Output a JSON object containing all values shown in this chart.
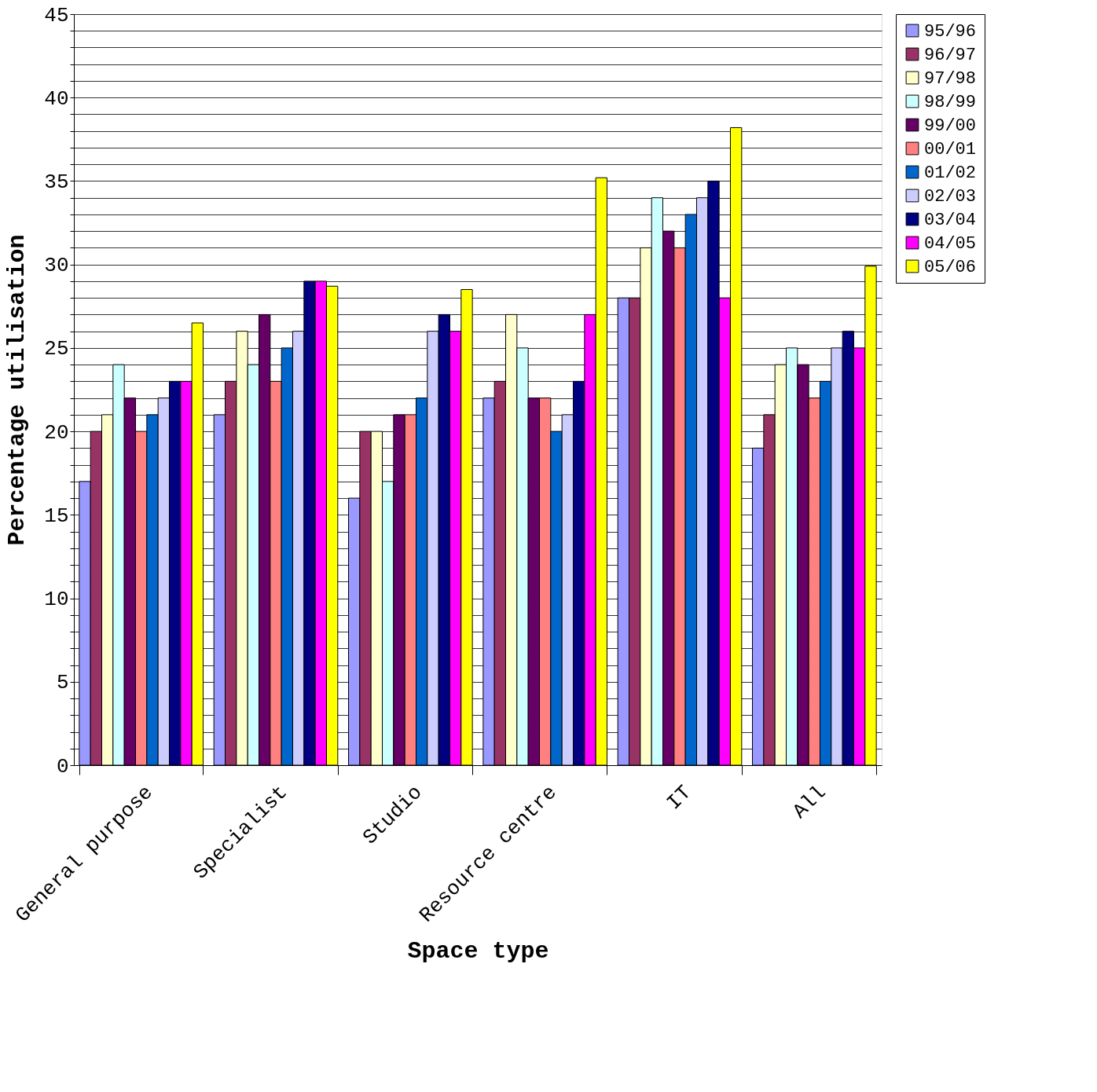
{
  "chart_data": {
    "type": "bar",
    "xlabel": "Space type",
    "ylabel": "Percentage utilisation",
    "categories": [
      "General purpose",
      "Specialist",
      "Studio",
      "Resource centre",
      "IT",
      "All"
    ],
    "series": [
      {
        "name": "95/96",
        "color": "#9999ff",
        "values": [
          17,
          21,
          16,
          22,
          28,
          19
        ]
      },
      {
        "name": "96/97",
        "color": "#993366",
        "values": [
          20,
          23,
          20,
          23,
          28,
          21
        ]
      },
      {
        "name": "97/98",
        "color": "#ffffcc",
        "values": [
          21,
          26,
          20,
          27,
          31,
          24
        ]
      },
      {
        "name": "98/99",
        "color": "#ccffff",
        "values": [
          24,
          24,
          17,
          25,
          34,
          25
        ]
      },
      {
        "name": "99/00",
        "color": "#660066",
        "values": [
          22,
          27,
          21,
          22,
          32,
          24
        ]
      },
      {
        "name": "00/01",
        "color": "#ff8080",
        "values": [
          20,
          23,
          21,
          22,
          31,
          22
        ]
      },
      {
        "name": "01/02",
        "color": "#0066cc",
        "values": [
          21,
          25,
          22,
          20,
          33,
          23
        ]
      },
      {
        "name": "02/03",
        "color": "#ccccff",
        "values": [
          22,
          26,
          26,
          21,
          34,
          25
        ]
      },
      {
        "name": "03/04",
        "color": "#000080",
        "values": [
          23,
          29,
          27,
          23,
          35,
          26
        ]
      },
      {
        "name": "04/05",
        "color": "#ff00ff",
        "values": [
          23,
          29,
          26,
          27,
          28,
          25
        ]
      },
      {
        "name": "05/06",
        "color": "#ffff00",
        "values": [
          26.5,
          28.7,
          28.5,
          35.2,
          38.2,
          29.9
        ]
      }
    ],
    "ylim": [
      0,
      45
    ],
    "yticks": [
      0,
      {
        "value": 1,
        "label": null
      },
      {
        "value": 2,
        "label": null
      },
      {
        "value": 3,
        "label": null
      },
      {
        "value": 4,
        "label": null
      },
      5,
      {
        "value": 6,
        "label": null
      },
      {
        "value": 7,
        "label": null
      },
      {
        "value": 8,
        "label": null
      },
      {
        "value": 9,
        "label": null
      },
      10,
      {
        "value": 11,
        "label": null
      },
      {
        "value": 12,
        "label": null
      },
      {
        "value": 13,
        "label": null
      },
      {
        "value": 14,
        "label": null
      },
      15,
      {
        "value": 16,
        "label": null
      },
      {
        "value": 17,
        "label": null
      },
      {
        "value": 18,
        "label": null
      },
      {
        "value": 19,
        "label": null
      },
      20,
      {
        "value": 21,
        "label": null
      },
      {
        "value": 22,
        "label": null
      },
      {
        "value": 23,
        "label": null
      },
      {
        "value": 24,
        "label": null
      },
      25,
      {
        "value": 26,
        "label": null
      },
      {
        "value": 27,
        "label": null
      },
      {
        "value": 28,
        "label": null
      },
      {
        "value": 29,
        "label": null
      },
      30,
      {
        "value": 31,
        "label": null
      },
      {
        "value": 32,
        "label": null
      },
      {
        "value": 33,
        "label": null
      },
      {
        "value": 34,
        "label": null
      },
      35,
      {
        "value": 36,
        "label": null
      },
      {
        "value": 37,
        "label": null
      },
      {
        "value": 38,
        "label": null
      },
      {
        "value": 39,
        "label": null
      },
      40,
      {
        "value": 41,
        "label": null
      },
      {
        "value": 42,
        "label": null
      },
      {
        "value": 43,
        "label": null
      },
      {
        "value": 44,
        "label": null
      },
      45
    ],
    "grid": "y",
    "legend": "right"
  }
}
